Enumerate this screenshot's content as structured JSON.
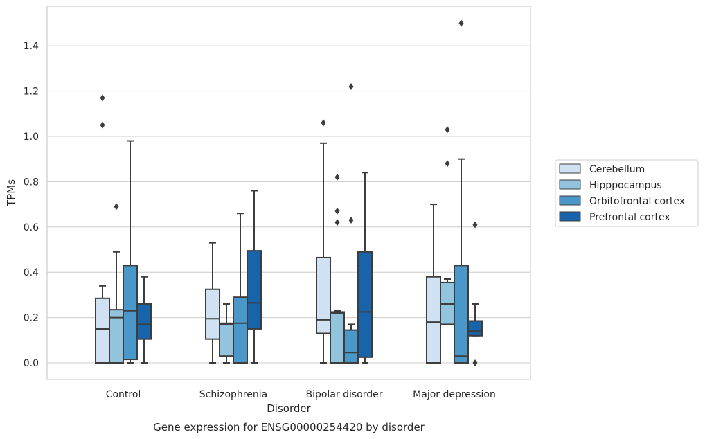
{
  "caption": "Gene expression for ENSG00000254420 by disorder",
  "chart_data": {
    "type": "box",
    "title": "",
    "xlabel": "Disorder",
    "ylabel": "TPMs",
    "ylim": [
      -0.07,
      1.58
    ],
    "yticks": [
      "0.0",
      "0.2",
      "0.4",
      "0.6",
      "0.8",
      "1.0",
      "1.2",
      "1.4"
    ],
    "grid": "horizontal",
    "legend_position": "right",
    "categories": [
      "Control",
      "Schizophrenia",
      "Bipolar disorder",
      "Major depression"
    ],
    "series": [
      {
        "name": "Cerebellum",
        "color": "#cfe1f2",
        "boxes": [
          {
            "whisker_low": 0.0,
            "q1": 0.0,
            "median": 0.15,
            "q3": 0.285,
            "whisker_high": 0.34,
            "outliers": [
              1.05,
              1.17
            ]
          },
          {
            "whisker_low": 0.0,
            "q1": 0.105,
            "median": 0.195,
            "q3": 0.325,
            "whisker_high": 0.53,
            "outliers": []
          },
          {
            "whisker_low": 0.0,
            "q1": 0.13,
            "median": 0.19,
            "q3": 0.465,
            "whisker_high": 0.97,
            "outliers": [
              1.06
            ]
          },
          {
            "whisker_low": 0.0,
            "q1": 0.0,
            "median": 0.18,
            "q3": 0.38,
            "whisker_high": 0.7,
            "outliers": []
          }
        ]
      },
      {
        "name": "Hipppocampus",
        "color": "#93c4de",
        "boxes": [
          {
            "whisker_low": 0.0,
            "q1": 0.0,
            "median": 0.2,
            "q3": 0.235,
            "whisker_high": 0.49,
            "outliers": [
              0.69
            ]
          },
          {
            "whisker_low": 0.0,
            "q1": 0.03,
            "median": 0.17,
            "q3": 0.175,
            "whisker_high": 0.26,
            "outliers": []
          },
          {
            "whisker_low": 0.0,
            "q1": 0.0,
            "median": 0.22,
            "q3": 0.225,
            "whisker_high": 0.23,
            "outliers": [
              0.62,
              0.67,
              0.82
            ]
          },
          {
            "whisker_low": 0.17,
            "q1": 0.17,
            "median": 0.26,
            "q3": 0.355,
            "whisker_high": 0.37,
            "outliers": [
              0.88,
              1.03
            ]
          }
        ]
      },
      {
        "name": "Orbitofrontal cortex",
        "color": "#4a98c9",
        "boxes": [
          {
            "whisker_low": 0.0,
            "q1": 0.015,
            "median": 0.23,
            "q3": 0.43,
            "whisker_high": 0.98,
            "outliers": []
          },
          {
            "whisker_low": 0.0,
            "q1": 0.0,
            "median": 0.175,
            "q3": 0.29,
            "whisker_high": 0.66,
            "outliers": []
          },
          {
            "whisker_low": 0.0,
            "q1": 0.0,
            "median": 0.045,
            "q3": 0.145,
            "whisker_high": 0.17,
            "outliers": [
              0.63,
              1.22
            ]
          },
          {
            "whisker_low": 0.0,
            "q1": 0.0,
            "median": 0.03,
            "q3": 0.43,
            "whisker_high": 0.9,
            "outliers": [
              1.5
            ]
          }
        ]
      },
      {
        "name": "Prefrontal cortex",
        "color": "#1764ab",
        "boxes": [
          {
            "whisker_low": 0.0,
            "q1": 0.105,
            "median": 0.17,
            "q3": 0.26,
            "whisker_high": 0.38,
            "outliers": []
          },
          {
            "whisker_low": 0.0,
            "q1": 0.15,
            "median": 0.265,
            "q3": 0.495,
            "whisker_high": 0.76,
            "outliers": []
          },
          {
            "whisker_low": 0.0,
            "q1": 0.025,
            "median": 0.225,
            "q3": 0.49,
            "whisker_high": 0.84,
            "outliers": []
          },
          {
            "whisker_low": 0.12,
            "q1": 0.12,
            "median": 0.14,
            "q3": 0.185,
            "whisker_high": 0.26,
            "outliers": [
              0.0,
              0.61
            ]
          }
        ]
      }
    ]
  }
}
